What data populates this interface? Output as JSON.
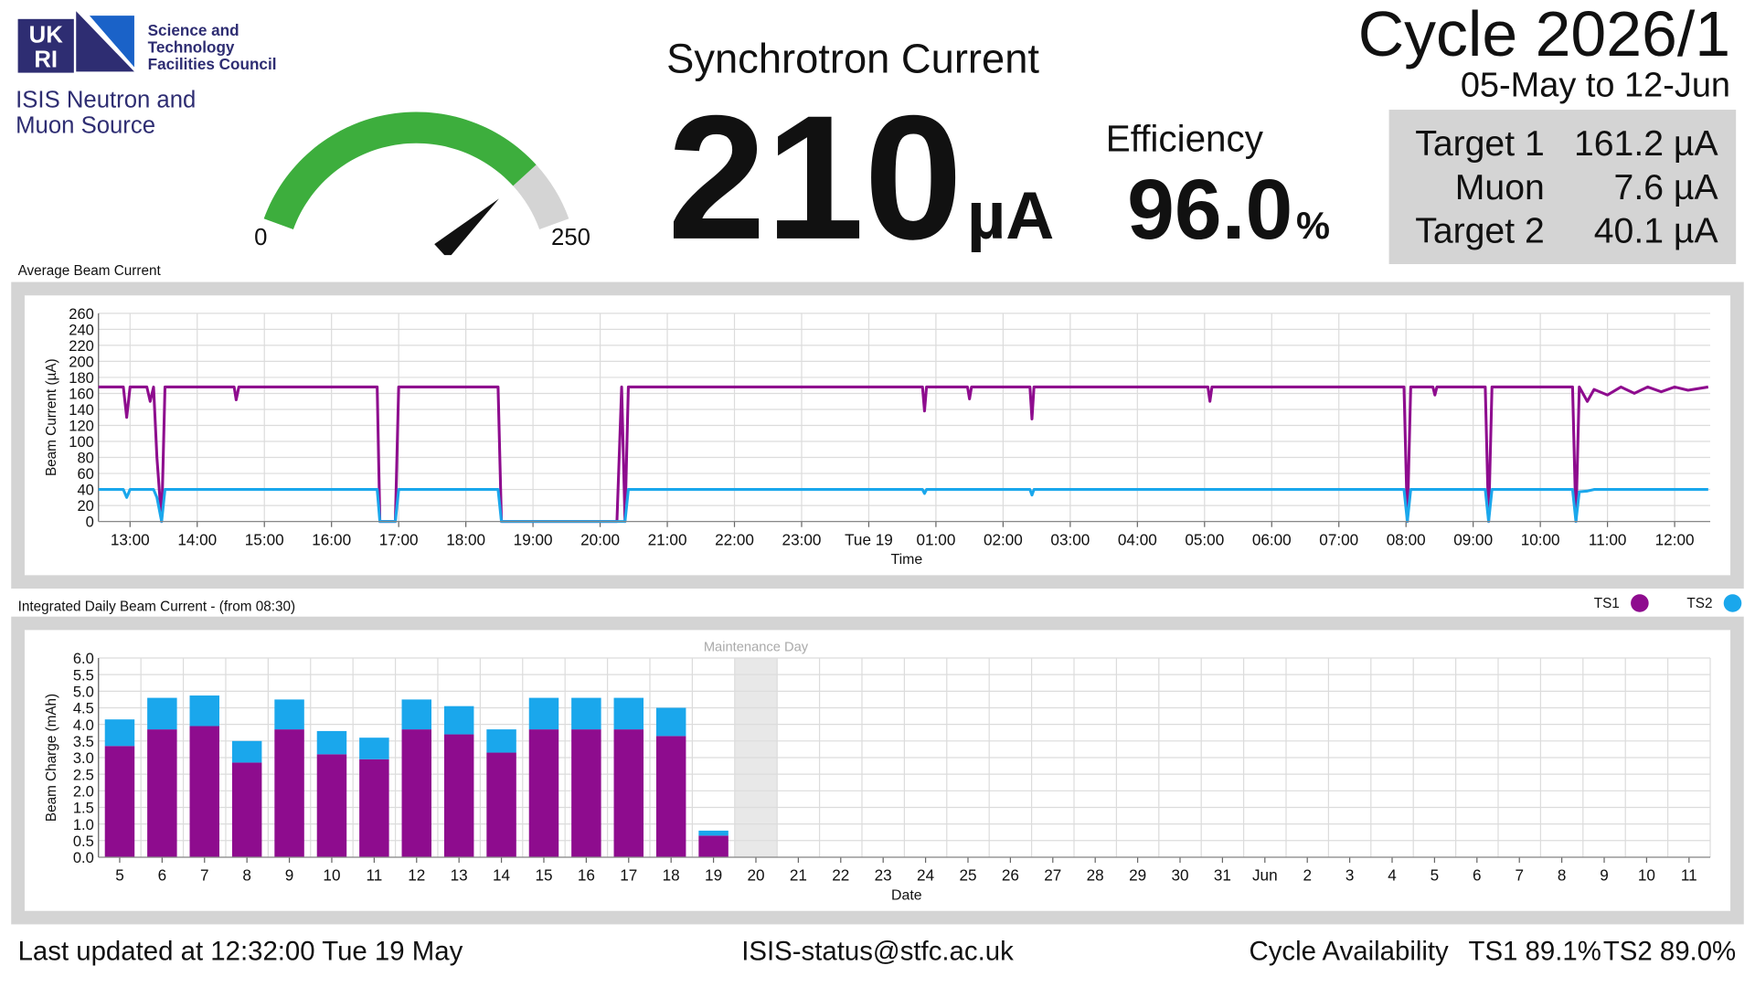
{
  "logo": {
    "letters": [
      "UK",
      "RI"
    ],
    "council": [
      "Science and",
      "Technology",
      "Facilities Council"
    ],
    "facility": [
      "ISIS Neutron and",
      "Muon Source"
    ]
  },
  "header": {
    "title": "Synchrotron Current",
    "cycle": "Cycle 2026/1",
    "dates": "05-May to 12-Jun"
  },
  "gauge": {
    "value": 210,
    "unit": "µA",
    "min": 0,
    "max": 250,
    "color": "#3dae3d",
    "track": "#d4d4d4"
  },
  "efficiency": {
    "label": "Efficiency",
    "value": "96.0",
    "unit": "%"
  },
  "targets": [
    {
      "name": "Target 1",
      "value": "161.2 µA"
    },
    {
      "name": "Muon",
      "value": "7.6 µA"
    },
    {
      "name": "Target 2",
      "value": "40.1 µA"
    }
  ],
  "chart_data": [
    {
      "type": "line",
      "title": "Average Beam Current",
      "xlabel": "Time",
      "ylabel": "Beam Current (µA)",
      "x": [
        12.53,
        12.9,
        12.95,
        13.0,
        13.25,
        13.3,
        13.35,
        13.4,
        13.47,
        13.52,
        14.55,
        14.58,
        14.62,
        16.68,
        16.72,
        16.95,
        17.0,
        18.48,
        18.53,
        20.25,
        20.32,
        20.37,
        20.42,
        24.8,
        24.83,
        24.86,
        25.47,
        25.5,
        25.53,
        26.4,
        26.43,
        26.46,
        29.05,
        29.08,
        29.11,
        31.97,
        32.02,
        32.07,
        32.4,
        32.43,
        32.46,
        33.18,
        33.23,
        33.28,
        34.48,
        34.53,
        34.58,
        34.7,
        34.8,
        35.0,
        35.2,
        35.4,
        35.6,
        35.8,
        36.0,
        36.2,
        36.5
      ],
      "series": [
        {
          "color": "#8e0c8e",
          "values": [
            168,
            168,
            130,
            168,
            168,
            150,
            168,
            80,
            0,
            168,
            168,
            152,
            168,
            168,
            0,
            0,
            168,
            168,
            0,
            0,
            168,
            0,
            168,
            168,
            138,
            168,
            168,
            153,
            168,
            168,
            128,
            168,
            168,
            150,
            168,
            168,
            0,
            168,
            168,
            158,
            168,
            168,
            0,
            168,
            168,
            0,
            168,
            150,
            165,
            158,
            168,
            160,
            168,
            162,
            168,
            164,
            168
          ]
        },
        {
          "color": "#1aa7ec",
          "values": [
            40,
            40,
            30,
            40,
            40,
            40,
            40,
            30,
            0,
            40,
            40,
            40,
            40,
            40,
            0,
            0,
            40,
            40,
            0,
            0,
            0,
            0,
            40,
            40,
            35,
            40,
            40,
            40,
            40,
            40,
            33,
            40,
            40,
            40,
            40,
            40,
            0,
            40,
            40,
            40,
            40,
            40,
            0,
            40,
            40,
            0,
            37,
            38,
            40,
            40,
            40,
            40,
            40,
            40,
            40,
            40,
            40
          ]
        }
      ],
      "xlim": [
        12.53,
        36.53
      ],
      "xticks": [
        {
          "value": 13,
          "label": "13:00"
        },
        {
          "value": 14,
          "label": "14:00"
        },
        {
          "value": 15,
          "label": "15:00"
        },
        {
          "value": 16,
          "label": "16:00"
        },
        {
          "value": 17,
          "label": "17:00"
        },
        {
          "value": 18,
          "label": "18:00"
        },
        {
          "value": 19,
          "label": "19:00"
        },
        {
          "value": 20,
          "label": "20:00"
        },
        {
          "value": 21,
          "label": "21:00"
        },
        {
          "value": 22,
          "label": "22:00"
        },
        {
          "value": 23,
          "label": "23:00"
        },
        {
          "value": 24,
          "label": "Tue 19"
        },
        {
          "value": 25,
          "label": "01:00"
        },
        {
          "value": 26,
          "label": "02:00"
        },
        {
          "value": 27,
          "label": "03:00"
        },
        {
          "value": 28,
          "label": "04:00"
        },
        {
          "value": 29,
          "label": "05:00"
        },
        {
          "value": 30,
          "label": "06:00"
        },
        {
          "value": 31,
          "label": "07:00"
        },
        {
          "value": 32,
          "label": "08:00"
        },
        {
          "value": 33,
          "label": "09:00"
        },
        {
          "value": 34,
          "label": "10:00"
        },
        {
          "value": 35,
          "label": "11:00"
        },
        {
          "value": 36,
          "label": "12:00"
        }
      ],
      "ylim": [
        0,
        260
      ],
      "yticks": [
        0,
        20,
        40,
        60,
        80,
        100,
        120,
        140,
        160,
        180,
        200,
        220,
        240,
        260
      ],
      "grid": true
    },
    {
      "type": "bar",
      "stacked": true,
      "title": "Integrated Daily Beam Current - (from 08:30)",
      "xlabel": "Date",
      "ylabel": "Beam Charge (mAh)",
      "categories": [
        "5",
        "6",
        "7",
        "8",
        "9",
        "10",
        "11",
        "12",
        "13",
        "14",
        "15",
        "16",
        "17",
        "18",
        "19",
        "20",
        "21",
        "22",
        "23",
        "24",
        "25",
        "26",
        "27",
        "28",
        "29",
        "30",
        "31",
        "Jun",
        "2",
        "3",
        "4",
        "5",
        "6",
        "7",
        "8",
        "9",
        "10",
        "11"
      ],
      "series": [
        {
          "name": "TS1",
          "color": "#8e0c8e",
          "values": [
            3.35,
            3.85,
            3.95,
            2.85,
            3.85,
            3.1,
            2.95,
            3.85,
            3.7,
            3.15,
            3.85,
            3.85,
            3.85,
            3.65,
            0.65,
            null,
            null,
            null,
            null,
            null,
            null,
            null,
            null,
            null,
            null,
            null,
            null,
            null,
            null,
            null,
            null,
            null,
            null,
            null,
            null,
            null,
            null,
            null
          ]
        },
        {
          "name": "TS2",
          "color": "#1aa7ec",
          "values": [
            0.8,
            0.95,
            0.92,
            0.65,
            0.9,
            0.7,
            0.65,
            0.9,
            0.85,
            0.7,
            0.95,
            0.95,
            0.95,
            0.85,
            0.15,
            null,
            null,
            null,
            null,
            null,
            null,
            null,
            null,
            null,
            null,
            null,
            null,
            null,
            null,
            null,
            null,
            null,
            null,
            null,
            null,
            null,
            null,
            null
          ]
        }
      ],
      "ylim": [
        0,
        6
      ],
      "yticks": [
        {
          "value": 0,
          "label": "0.0"
        },
        0.5,
        {
          "value": 1,
          "label": "1.0"
        },
        1.5,
        {
          "value": 2,
          "label": "2.0"
        },
        2.5,
        {
          "value": 3,
          "label": "3.0"
        },
        3.5,
        {
          "value": 4,
          "label": "4.0"
        },
        4.5,
        {
          "value": 5,
          "label": "5.0"
        },
        5.5,
        {
          "value": 6,
          "label": "6.0"
        }
      ],
      "grid": true,
      "legend": "top-right",
      "annotations": [
        {
          "text": "Maintenance Day",
          "category": "20"
        }
      ]
    }
  ],
  "footer": {
    "last_updated": "Last updated at 12:32:00 Tue 19 May",
    "email": "ISIS-status@stfc.ac.uk",
    "availability_label": "Cycle Availability",
    "availability": [
      "TS1 89.1%",
      "TS2 89.0%"
    ]
  }
}
